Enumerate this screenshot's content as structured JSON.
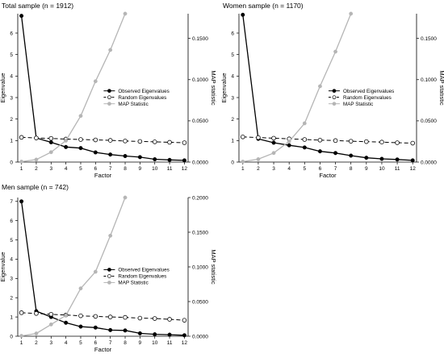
{
  "chart_data": [
    {
      "type": "line",
      "title": "Total sample (n = 1912)",
      "xlabel": "Factor",
      "ylabel": "Eigenvalue",
      "y2label": "MAP statistic",
      "x": [
        1,
        2,
        3,
        4,
        5,
        6,
        7,
        8,
        9,
        10,
        11,
        12
      ],
      "ylim": [
        0,
        6.9
      ],
      "y2lim": [
        0,
        0.18
      ],
      "yticks": [
        "0",
        "1",
        "2",
        "3",
        "4",
        "5",
        "6"
      ],
      "yticks_values": [
        0,
        1,
        2,
        3,
        4,
        5,
        6
      ],
      "y2ticks": [
        "0.0000",
        "0.0500",
        "0.1000",
        "0.1500"
      ],
      "y2ticks_values": [
        0,
        0.05,
        0.1,
        0.15
      ],
      "legend_position": "center-right",
      "series": [
        {
          "name": "Observed Eigenvalues",
          "axis": "left",
          "style": "solid-black",
          "x": [
            1,
            2,
            3,
            4,
            5,
            6,
            7,
            8,
            9,
            10,
            11,
            12
          ],
          "values": [
            6.8,
            1.12,
            0.92,
            0.7,
            0.65,
            0.45,
            0.35,
            0.28,
            0.23,
            0.13,
            0.1,
            0.08
          ]
        },
        {
          "name": "Random Eigenvalues",
          "axis": "left",
          "style": "dashed-open",
          "x": [
            1,
            2,
            3,
            4,
            5,
            6,
            7,
            8,
            9,
            10,
            11,
            12
          ],
          "values": [
            1.15,
            1.12,
            1.1,
            1.07,
            1.05,
            1.03,
            1.01,
            0.98,
            0.96,
            0.94,
            0.92,
            0.9
          ]
        },
        {
          "name": "MAP Statistic",
          "axis": "right",
          "style": "solid-grey",
          "x": [
            1,
            2,
            3,
            4,
            5,
            6,
            7,
            8
          ],
          "values": [
            0.0005,
            0.003,
            0.012,
            0.026,
            0.056,
            0.098,
            0.136,
            0.18
          ]
        }
      ]
    },
    {
      "type": "line",
      "title": "Women sample (n = 1170)",
      "xlabel": "Factor",
      "ylabel": "Eigenvalue",
      "y2label": "MAP statistic",
      "x": [
        1,
        2,
        3,
        4,
        5,
        6,
        7,
        8,
        9,
        10,
        11,
        12
      ],
      "ylim": [
        0,
        6.9
      ],
      "y2lim": [
        0,
        0.18
      ],
      "yticks": [
        "0",
        "1",
        "2",
        "3",
        "4",
        "5",
        "6"
      ],
      "yticks_values": [
        0,
        1,
        2,
        3,
        4,
        5,
        6
      ],
      "y2ticks": [
        "0.0000",
        "0.0500",
        "0.1000",
        "0.1500"
      ],
      "y2ticks_values": [
        0,
        0.05,
        0.1,
        0.15
      ],
      "legend_position": "center-right",
      "series": [
        {
          "name": "Observed Eigenvalues",
          "axis": "left",
          "style": "solid-black",
          "x": [
            1,
            2,
            3,
            4,
            5,
            6,
            7,
            8,
            9,
            10,
            11,
            12
          ],
          "values": [
            6.85,
            1.08,
            0.9,
            0.78,
            0.68,
            0.5,
            0.42,
            0.3,
            0.2,
            0.15,
            0.12,
            0.08
          ]
        },
        {
          "name": "Random Eigenvalues",
          "axis": "left",
          "style": "dashed-open",
          "x": [
            1,
            2,
            3,
            4,
            5,
            6,
            7,
            8,
            9,
            10,
            11,
            12
          ],
          "values": [
            1.17,
            1.14,
            1.11,
            1.08,
            1.05,
            1.02,
            1.0,
            0.97,
            0.95,
            0.93,
            0.9,
            0.88
          ]
        },
        {
          "name": "MAP Statistic",
          "axis": "right",
          "style": "solid-grey",
          "x": [
            1,
            2,
            3,
            4,
            5,
            6,
            7,
            8
          ],
          "values": [
            0.0005,
            0.0035,
            0.011,
            0.025,
            0.047,
            0.092,
            0.134,
            0.18
          ]
        }
      ]
    },
    {
      "type": "line",
      "title": "Men sample (n = 742)",
      "xlabel": "Factor",
      "ylabel": "Eigenvalue",
      "y2label": "MAP statistic",
      "x": [
        1,
        2,
        3,
        4,
        5,
        6,
        7,
        8,
        9,
        10,
        11,
        12
      ],
      "ylim": [
        0,
        7.2
      ],
      "y2lim": [
        0,
        0.2
      ],
      "yticks": [
        "0",
        "1",
        "2",
        "3",
        "4",
        "5",
        "6",
        "7"
      ],
      "yticks_values": [
        0,
        1,
        2,
        3,
        4,
        5,
        6,
        7
      ],
      "y2ticks": [
        "0.0000",
        "0.0500",
        "0.1000",
        "0.1500",
        "0.2000"
      ],
      "y2ticks_values": [
        0,
        0.05,
        0.1,
        0.15,
        0.2
      ],
      "legend_position": "center-right",
      "series": [
        {
          "name": "Observed Eigenvalues",
          "axis": "left",
          "style": "solid-black",
          "x": [
            1,
            2,
            3,
            4,
            5,
            6,
            7,
            8,
            9,
            10,
            11,
            12
          ],
          "values": [
            7.0,
            1.3,
            1.0,
            0.7,
            0.5,
            0.45,
            0.32,
            0.3,
            0.15,
            0.1,
            0.08,
            0.05
          ]
        },
        {
          "name": "Random Eigenvalues",
          "axis": "left",
          "style": "dashed-open",
          "x": [
            1,
            2,
            3,
            4,
            5,
            6,
            7,
            8,
            9,
            10,
            11,
            12
          ],
          "values": [
            1.22,
            1.18,
            1.14,
            1.1,
            1.06,
            1.03,
            1.0,
            0.98,
            0.94,
            0.92,
            0.88,
            0.83
          ]
        },
        {
          "name": "MAP Statistic",
          "axis": "right",
          "style": "solid-grey",
          "x": [
            1,
            2,
            3,
            4,
            5,
            6,
            7,
            8
          ],
          "values": [
            0.0005,
            0.004,
            0.017,
            0.03,
            0.069,
            0.093,
            0.145,
            0.2
          ]
        }
      ]
    }
  ],
  "colors": {
    "observed": "#000000",
    "random": "#000000",
    "map": "#b5b5b5",
    "axis": "#000000"
  }
}
